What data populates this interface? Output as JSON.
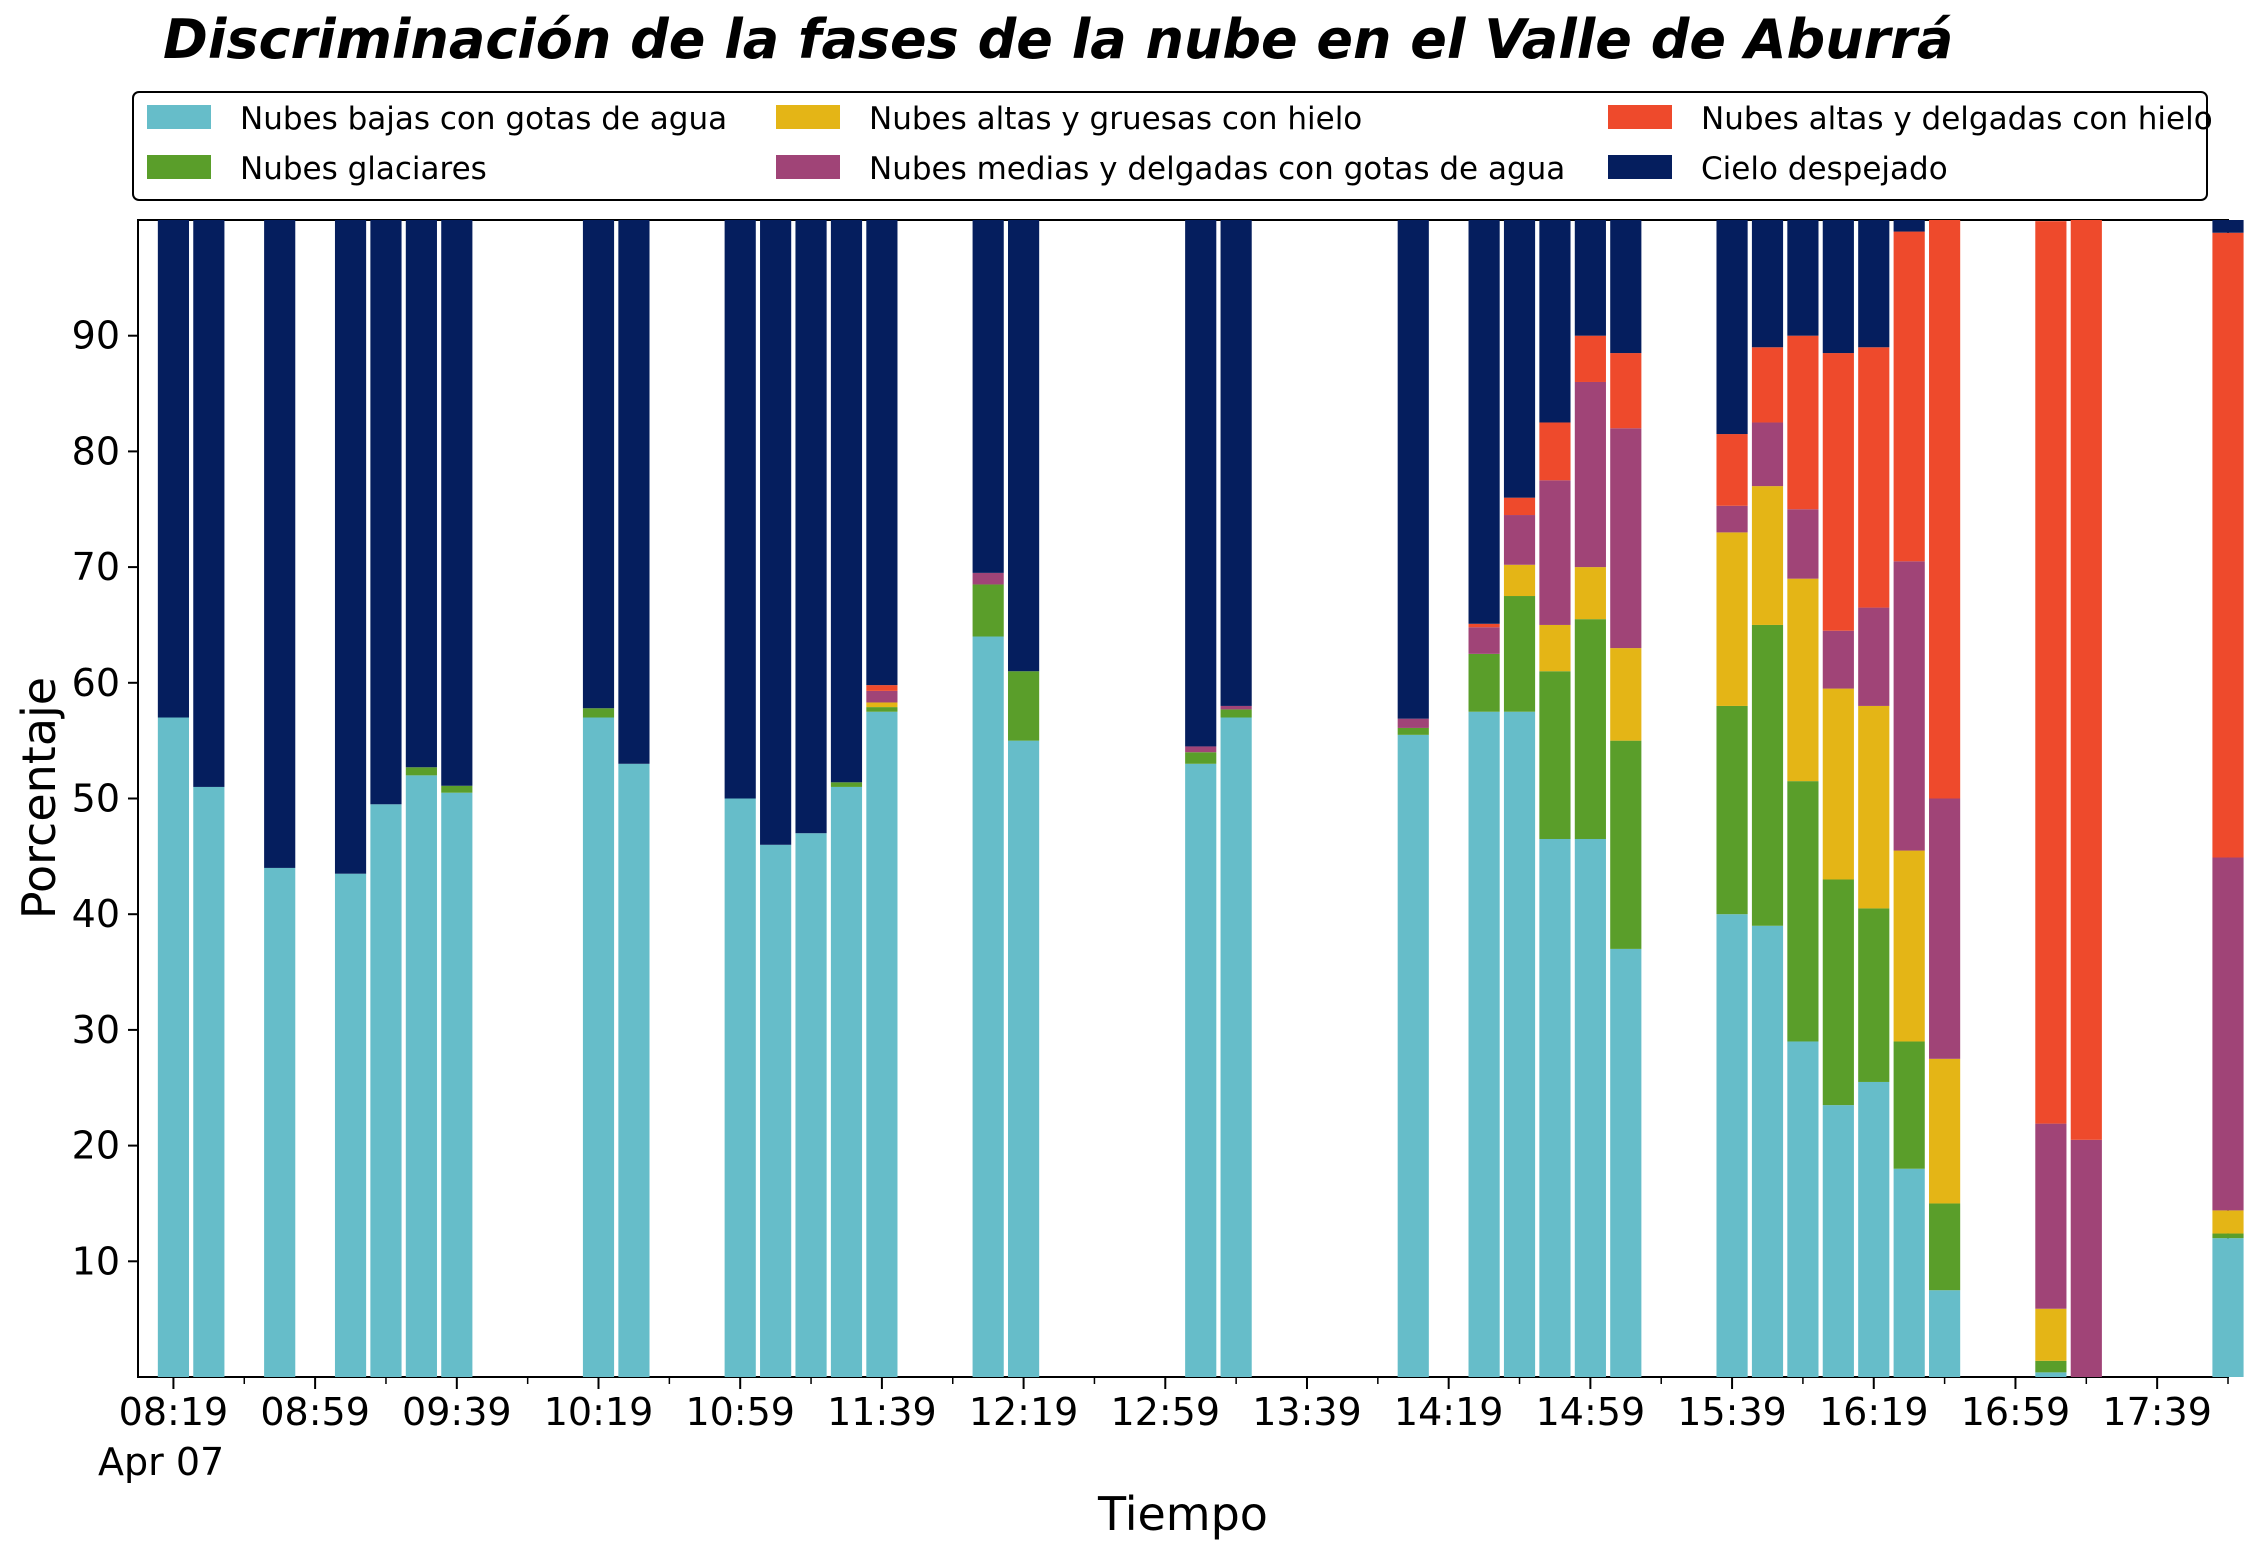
{
  "chart_data": {
    "type": "bar",
    "stacked": true,
    "title": "Discriminación de la fases de la nube en el Valle de Aburrá",
    "xlabel": "Tiempo",
    "ylabel": "Porcentaje",
    "ylim": [
      0,
      100
    ],
    "yticks": [
      10,
      20,
      30,
      40,
      50,
      60,
      70,
      80,
      90
    ],
    "x_start": "08:09",
    "x_end": "17:59",
    "bar_interval_minutes": 10,
    "xticks": [
      "08:19",
      "08:59",
      "09:39",
      "10:19",
      "10:59",
      "11:39",
      "12:19",
      "12:59",
      "13:39",
      "14:19",
      "14:59",
      "15:39",
      "16:19",
      "16:59",
      "17:39"
    ],
    "x_date_label": "Apr 07",
    "grid": false,
    "legend_placement": "top",
    "series": [
      {
        "name": "Nubes bajas con gotas de agua",
        "color": "#66bdc9"
      },
      {
        "name": "Nubes glaciares",
        "color": "#5a9e2a"
      },
      {
        "name": "Nubes altas y gruesas con hielo",
        "color": "#e4b516"
      },
      {
        "name": "Nubes medias y delgadas con gotas de agua",
        "color": "#a04477"
      },
      {
        "name": "Nubes altas y delgadas con hielo",
        "color": "#ee4a2c"
      },
      {
        "name": "Cielo despejado",
        "color": "#051e5e"
      }
    ],
    "bars": [
      {
        "time": "08:19",
        "values": [
          57,
          0,
          0,
          0,
          0,
          43
        ]
      },
      {
        "time": "08:29",
        "values": [
          51,
          0,
          0,
          0,
          0,
          49
        ]
      },
      {
        "time": "08:49",
        "values": [
          44,
          0,
          0,
          0,
          0,
          56
        ]
      },
      {
        "time": "09:09",
        "values": [
          43.5,
          0,
          0,
          0,
          0,
          56.5
        ]
      },
      {
        "time": "09:19",
        "values": [
          49.5,
          0,
          0,
          0,
          0,
          50.5
        ]
      },
      {
        "time": "09:29",
        "values": [
          52,
          0.7,
          0,
          0,
          0,
          47.3
        ]
      },
      {
        "time": "09:39",
        "values": [
          50.5,
          0.6,
          0,
          0,
          0,
          48.9
        ]
      },
      {
        "time": "10:19",
        "values": [
          57,
          0.8,
          0,
          0,
          0,
          42.2
        ]
      },
      {
        "time": "10:29",
        "values": [
          53,
          0,
          0,
          0,
          0,
          47
        ]
      },
      {
        "time": "10:59",
        "values": [
          50,
          0,
          0,
          0,
          0,
          50
        ]
      },
      {
        "time": "11:09",
        "values": [
          46,
          0,
          0,
          0,
          0,
          54
        ]
      },
      {
        "time": "11:19",
        "values": [
          47,
          0,
          0,
          0,
          0,
          53
        ]
      },
      {
        "time": "11:29",
        "values": [
          51,
          0.4,
          0,
          0,
          0,
          48.6
        ]
      },
      {
        "time": "11:39",
        "values": [
          57.5,
          0.4,
          0.4,
          1.0,
          0.5,
          40.2
        ]
      },
      {
        "time": "12:09",
        "values": [
          64,
          4.5,
          0,
          1.0,
          0,
          30.5
        ]
      },
      {
        "time": "12:19",
        "values": [
          55,
          6,
          0,
          0,
          0,
          39
        ]
      },
      {
        "time": "13:09",
        "values": [
          53,
          1.0,
          0,
          0.5,
          0,
          45.5
        ]
      },
      {
        "time": "13:19",
        "values": [
          57,
          0.7,
          0,
          0.3,
          0,
          42
        ]
      },
      {
        "time": "14:09",
        "values": [
          55.5,
          0.6,
          0,
          0.8,
          0,
          43.1
        ]
      },
      {
        "time": "14:29",
        "values": [
          57.5,
          5,
          0,
          2.3,
          0.3,
          34.9
        ]
      },
      {
        "time": "14:39",
        "values": [
          57.5,
          10,
          2.7,
          4.3,
          1.5,
          24
        ]
      },
      {
        "time": "14:49",
        "values": [
          46.5,
          14.5,
          4,
          12.5,
          5,
          17.5
        ]
      },
      {
        "time": "14:59",
        "values": [
          46.5,
          19,
          4.5,
          16,
          4,
          10
        ]
      },
      {
        "time": "15:09",
        "values": [
          37,
          18,
          8,
          19,
          6.5,
          11.5
        ]
      },
      {
        "time": "15:39",
        "values": [
          40,
          18,
          15,
          2.3,
          6.2,
          18.5
        ]
      },
      {
        "time": "15:49",
        "values": [
          39,
          26,
          12,
          5.5,
          6.5,
          11
        ]
      },
      {
        "time": "15:59",
        "values": [
          29,
          22.5,
          17.5,
          6,
          15,
          10
        ]
      },
      {
        "time": "16:09",
        "values": [
          23.5,
          19.5,
          16.5,
          5,
          24,
          11.5
        ]
      },
      {
        "time": "16:19",
        "values": [
          25.5,
          15,
          17.5,
          8.5,
          22.5,
          11
        ]
      },
      {
        "time": "16:29",
        "values": [
          18,
          11,
          16.5,
          25,
          28.5,
          1
        ]
      },
      {
        "time": "16:39",
        "values": [
          7.5,
          7.5,
          12.5,
          22.5,
          50,
          0
        ]
      },
      {
        "time": "17:09",
        "values": [
          0.4,
          1.0,
          4.5,
          16,
          78,
          0
        ]
      },
      {
        "time": "17:19",
        "values": [
          0,
          0,
          0,
          20.5,
          79.5,
          0
        ]
      },
      {
        "time": "17:59",
        "values": [
          12,
          0.4,
          2,
          30.5,
          54,
          1.1
        ]
      }
    ]
  }
}
